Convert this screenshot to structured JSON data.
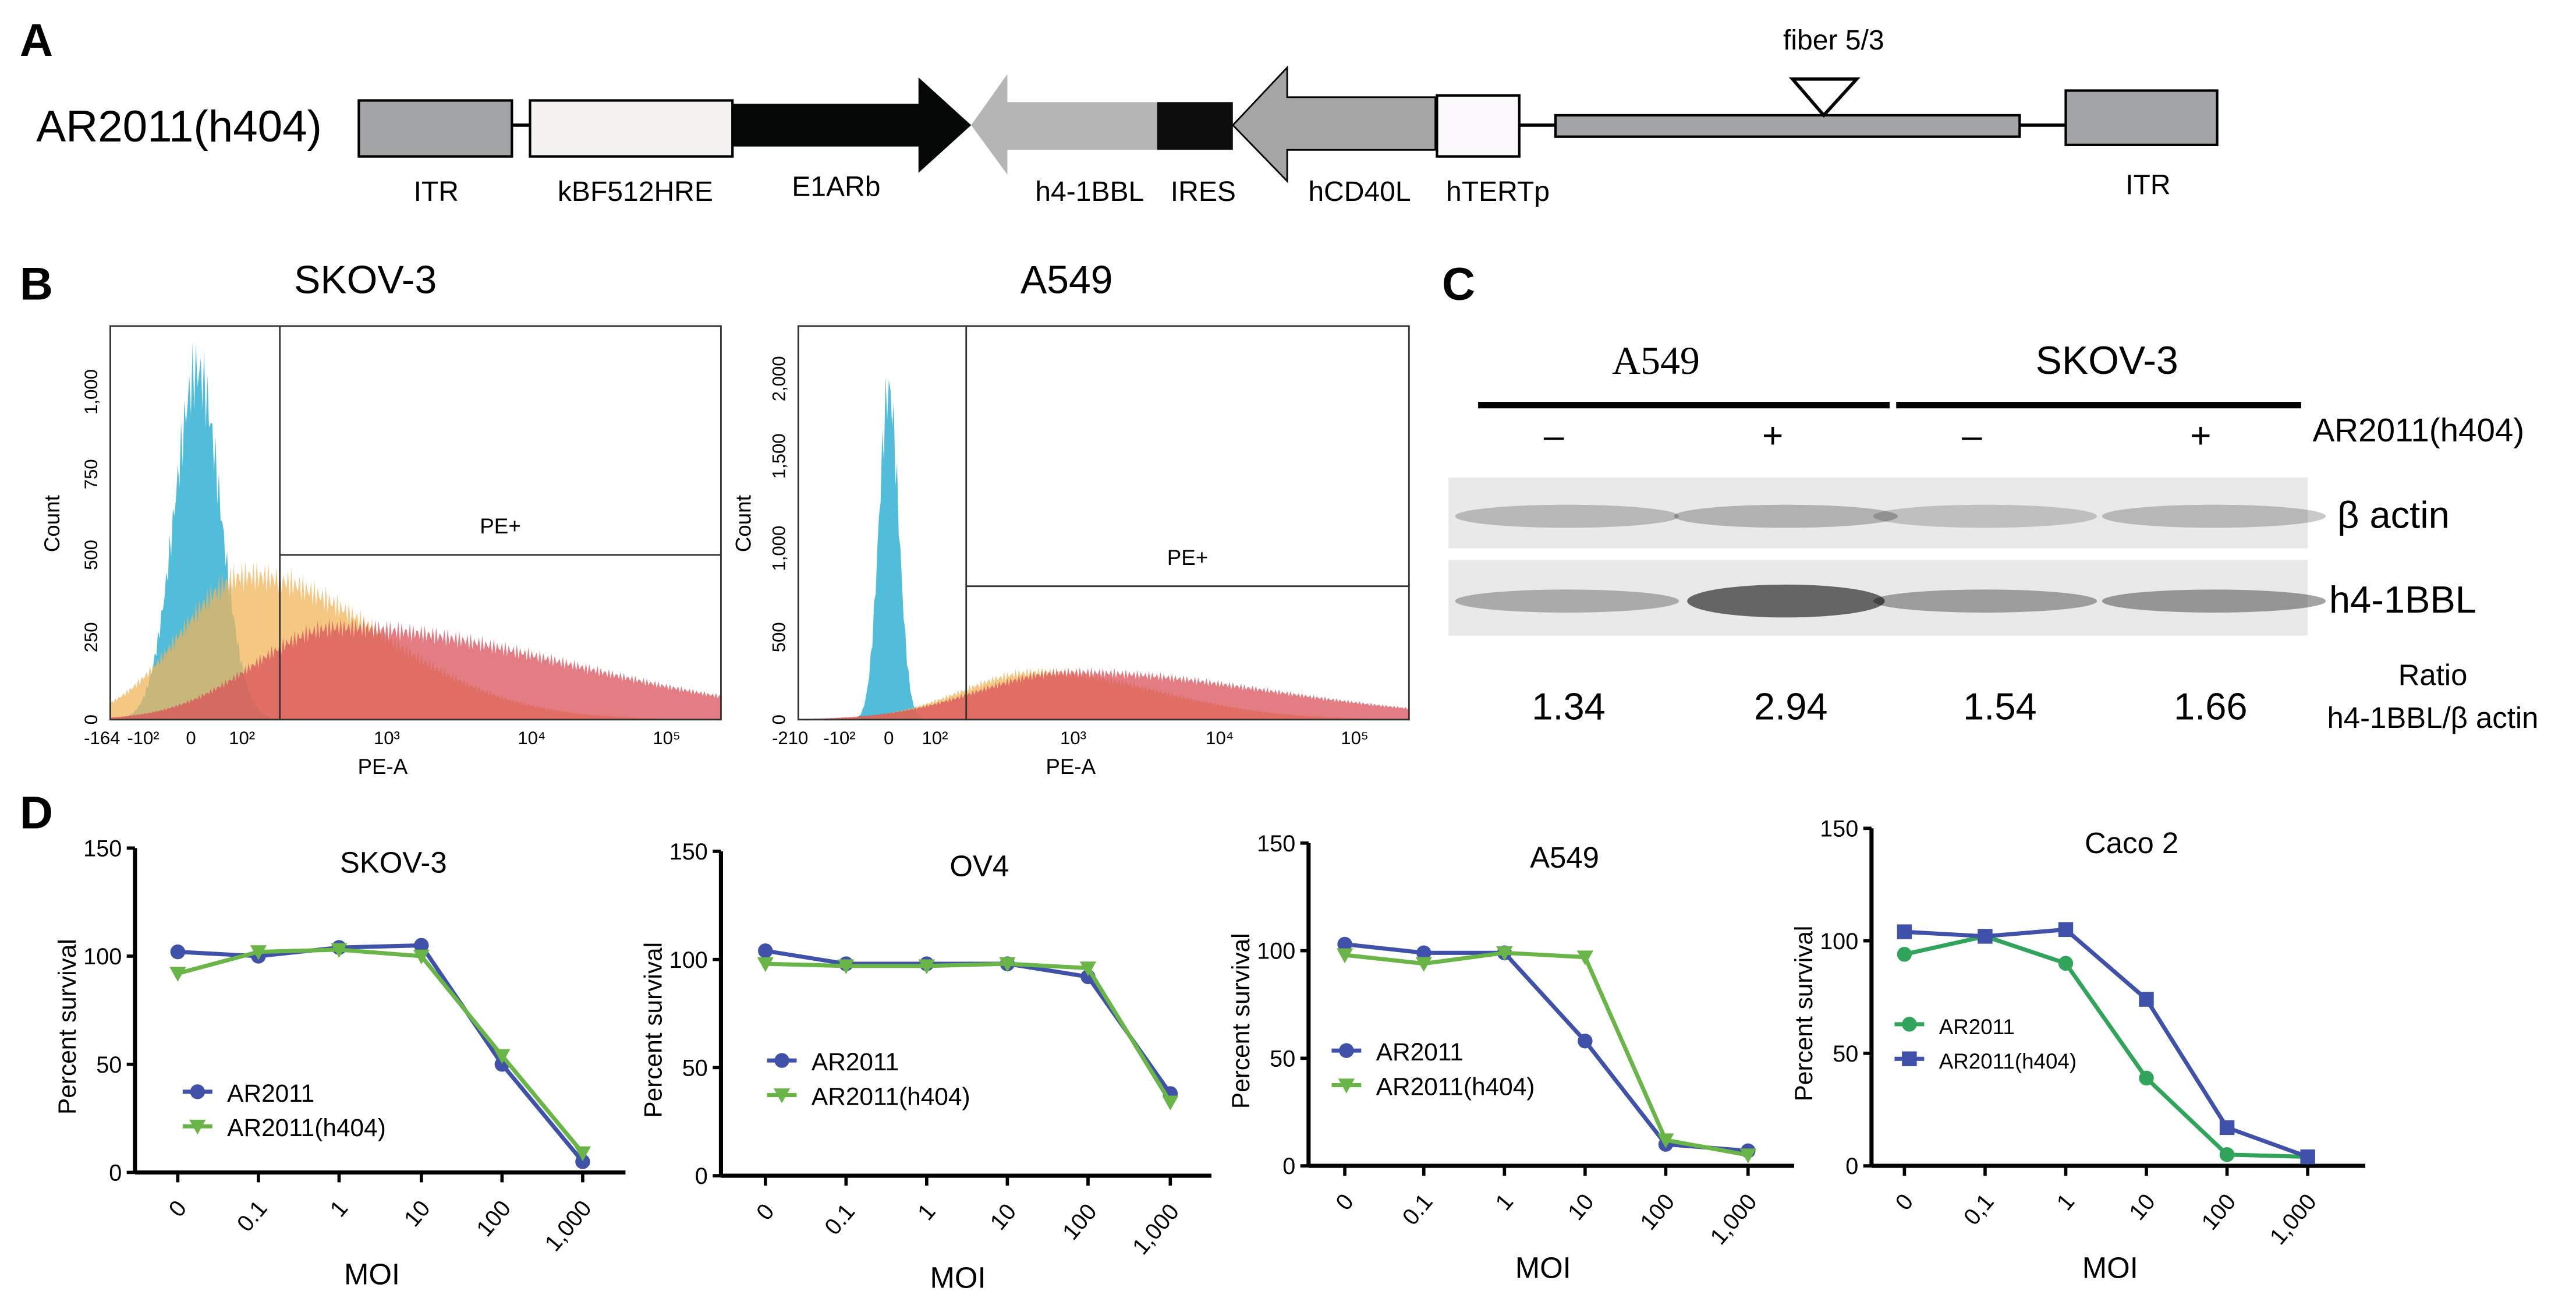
{
  "panel_labels": {
    "a": "A",
    "b": "B",
    "c": "C",
    "d": "D"
  },
  "construct": {
    "name": "AR2011(h404)",
    "elements": [
      "ITR",
      "kBF512HRE",
      "E1ARb",
      "h4-1BBL",
      "IRES",
      "hCD40L",
      "hTERTp",
      "ITR"
    ],
    "fiber_label": "fiber 5/3",
    "colors": {
      "itr": "#a3a4a6",
      "hre": "#f4f2f0",
      "e1a": "#050606",
      "h41bbl": "#b5b5b5",
      "ires": "#0d0d0d",
      "cd40l": "#a5a5a5",
      "htert": "#fbf9fc",
      "fiber": "#a3a4a6"
    }
  },
  "flow": [
    {
      "title": "SKOV-3",
      "ylabel": "Count",
      "xlabel": "PE-A",
      "gate_label": "PE+",
      "yticks": [
        "0",
        "250",
        "500",
        "750",
        "1,000"
      ],
      "xticks": [
        "-164",
        "-10²",
        "0",
        "10²",
        "10³",
        "10⁴",
        "10⁵"
      ]
    },
    {
      "title": "A549",
      "ylabel": "Count",
      "xlabel": "PE-A",
      "gate_label": "PE+",
      "yticks": [
        "0",
        "500",
        "1,000",
        "1,500",
        "2,000"
      ],
      "xticks": [
        "-210",
        "-10²",
        "0",
        "10²",
        "10³",
        "10⁴",
        "10⁵"
      ]
    }
  ],
  "flow_colors": {
    "control": "#3fb6d6",
    "ar2011": "#f0b45a",
    "h404": "#d9505a",
    "overlap": "#e77a2a"
  },
  "western": {
    "cell_lines": [
      "A549",
      "SKOV-3"
    ],
    "treatment_label": "AR2011(h404)",
    "lanes": [
      "–",
      "+",
      "–",
      "+"
    ],
    "rows": [
      "β actin",
      "h4-1BBL"
    ],
    "ratios": [
      "1.34",
      "2.94",
      "1.54",
      "1.66"
    ],
    "ratio_label": "Ratio",
    "ratio_sublabel": "h4-1BBL/β actin"
  },
  "chart_data": [
    {
      "type": "line",
      "title": "SKOV-3",
      "xlabel": "MOI",
      "ylabel": "Percent survival",
      "categories": [
        "0",
        "0.1",
        "1",
        "10",
        "100",
        "1,000"
      ],
      "ylim": [
        0,
        150
      ],
      "yticks": [
        "0",
        "50",
        "100",
        "150"
      ],
      "legend": "center-left",
      "series": [
        {
          "name": "AR2011",
          "color": "#3f51a8",
          "marker": "circle",
          "values": [
            102,
            100,
            104,
            105,
            50,
            5
          ]
        },
        {
          "name": "AR2011(h404)",
          "color": "#6ab547",
          "marker": "triangle-down",
          "values": [
            92,
            102,
            103,
            100,
            54,
            9
          ]
        }
      ]
    },
    {
      "type": "line",
      "title": "OV4",
      "xlabel": "MOI",
      "ylabel": "Percent survival",
      "categories": [
        "0",
        "0.1",
        "1",
        "10",
        "100",
        "1,000"
      ],
      "ylim": [
        0,
        150
      ],
      "yticks": [
        "0",
        "50",
        "100",
        "150"
      ],
      "legend": "center-left",
      "series": [
        {
          "name": "AR2011",
          "color": "#3f51a8",
          "marker": "circle",
          "values": [
            104,
            98,
            98,
            98,
            92,
            38
          ]
        },
        {
          "name": "AR2011(h404)",
          "color": "#6ab547",
          "marker": "triangle-down",
          "values": [
            98,
            97,
            97,
            98,
            96,
            34
          ]
        }
      ]
    },
    {
      "type": "line",
      "title": "A549",
      "xlabel": "MOI",
      "ylabel": "Percent survival",
      "categories": [
        "0",
        "0.1",
        "1",
        "10",
        "100",
        "1,000"
      ],
      "ylim": [
        0,
        150
      ],
      "yticks": [
        "0",
        "50",
        "100",
        "150"
      ],
      "legend": "center-left",
      "series": [
        {
          "name": "AR2011",
          "color": "#3f51a8",
          "marker": "circle",
          "values": [
            103,
            99,
            99,
            58,
            10,
            7
          ]
        },
        {
          "name": "AR2011(h404)",
          "color": "#6ab547",
          "marker": "triangle-down",
          "values": [
            98,
            94,
            99,
            97,
            12,
            5
          ]
        }
      ]
    },
    {
      "type": "line",
      "title": "Caco 2",
      "xlabel": "MOI",
      "ylabel": "Percent survival",
      "categories": [
        "0",
        "0,1",
        "1",
        "10",
        "100",
        "1,000"
      ],
      "ylim": [
        0,
        150
      ],
      "yticks": [
        "0",
        "50",
        "100",
        "150"
      ],
      "legend": "center-left",
      "series": [
        {
          "name": "AR2011",
          "color": "#2fa45a",
          "marker": "circle",
          "values": [
            94,
            102,
            90,
            39,
            5,
            4
          ]
        },
        {
          "name": "AR2011(h404)",
          "color": "#3f51a8",
          "marker": "square",
          "values": [
            104,
            102,
            105,
            74,
            17,
            4
          ]
        }
      ]
    }
  ]
}
